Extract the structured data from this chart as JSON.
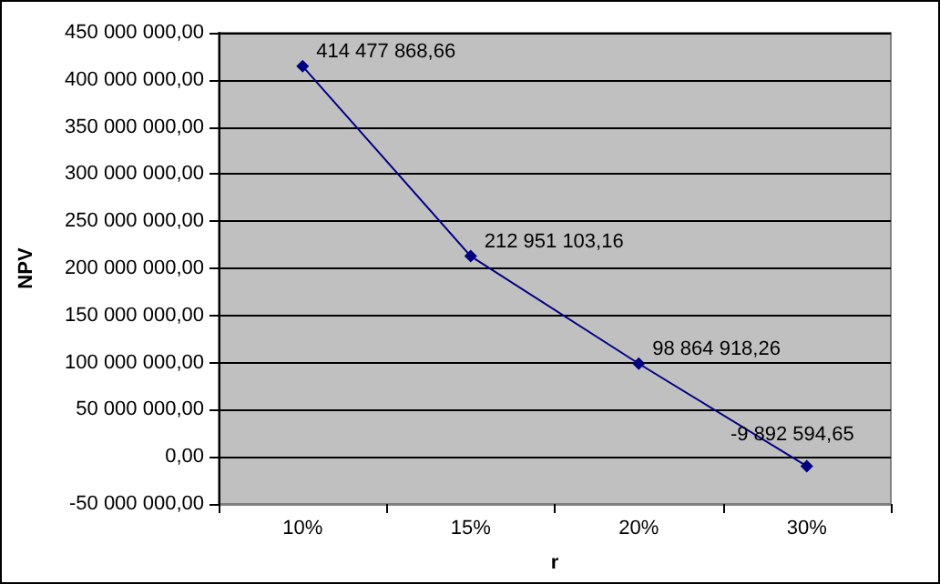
{
  "chart_data": {
    "type": "line",
    "xlabel": "r",
    "ylabel": "NPV",
    "categories": [
      "10%",
      "15%",
      "20%",
      "30%"
    ],
    "series": [
      {
        "color": "#000080",
        "values": [
          414477868.66,
          212951103.16,
          98864918.26,
          -9892594.65
        ],
        "value_labels": [
          "414 477 868,66",
          "212 951 103,16",
          "98 864 918,26",
          "-9 892 594,65"
        ]
      }
    ],
    "ylim": [
      -50000000,
      450000000
    ],
    "yticks": [
      {
        "value": -50000000,
        "label": "-50 000 000,00"
      },
      {
        "value": 0,
        "label": "0,00"
      },
      {
        "value": 50000000,
        "label": "50 000 000,00"
      },
      {
        "value": 100000000,
        "label": "100 000 000,00"
      },
      {
        "value": 150000000,
        "label": "150 000 000,00"
      },
      {
        "value": 200000000,
        "label": "200 000 000,00"
      },
      {
        "value": 250000000,
        "label": "250 000 000,00"
      },
      {
        "value": 300000000,
        "label": "300 000 000,00"
      },
      {
        "value": 350000000,
        "label": "350 000 000,00"
      },
      {
        "value": 400000000,
        "label": "400 000 000,00"
      },
      {
        "value": 450000000,
        "label": "450 000 000,00"
      }
    ],
    "grid": "y",
    "marker": "diamond",
    "line_style": "solid"
  }
}
